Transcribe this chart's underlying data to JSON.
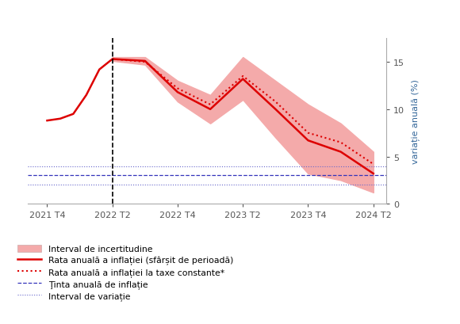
{
  "ylabel": "variație anuală (%)",
  "xtick_labels": [
    "2021 T4",
    "2022 T2",
    "2022 T4",
    "2023 T2",
    "2023 T4",
    "2024 T2"
  ],
  "ytick_labels": [
    0,
    5,
    10,
    15
  ],
  "ylim": [
    0,
    17.5
  ],
  "target_line": 3.0,
  "band_lower": 2.0,
  "band_upper": 4.0,
  "solid_line_color": "#dd0000",
  "dotted_line_color": "#dd0000",
  "uncertainty_band_color": "#f4aaaa",
  "target_line_color": "#3333bb",
  "band_line_color": "#6666cc",
  "legend_labels": [
    "Interval de incertitudine",
    "Rata anuală a inflației (sfârșit de perioadă)",
    "Rata anuală a inflației la taxe constante*",
    "Ţinta anuală de inflație",
    "Interval de variație"
  ],
  "x_solid": [
    0,
    0.2,
    0.4,
    0.6,
    0.8,
    1.0,
    1.5,
    2.0,
    2.5,
    3.0,
    3.5,
    4.0,
    4.5,
    5.0
  ],
  "y_solid": [
    8.8,
    9.0,
    9.5,
    11.5,
    14.2,
    15.3,
    15.1,
    11.8,
    10.0,
    13.2,
    10.0,
    6.7,
    5.5,
    3.2
  ],
  "x_dotted": [
    1.0,
    1.5,
    2.0,
    2.5,
    3.0,
    3.5,
    4.0,
    4.5,
    5.0
  ],
  "y_dotted": [
    15.3,
    15.0,
    12.2,
    10.5,
    13.5,
    10.8,
    7.5,
    6.5,
    4.2
  ],
  "x_band": [
    1.0,
    1.5,
    2.0,
    2.5,
    3.0,
    3.5,
    4.0,
    4.5,
    5.0
  ],
  "y_upper": [
    15.5,
    15.5,
    13.0,
    11.5,
    15.5,
    13.0,
    10.5,
    8.5,
    5.5
  ],
  "y_lower": [
    15.1,
    14.7,
    10.8,
    8.5,
    11.0,
    7.0,
    3.2,
    2.5,
    1.2
  ]
}
